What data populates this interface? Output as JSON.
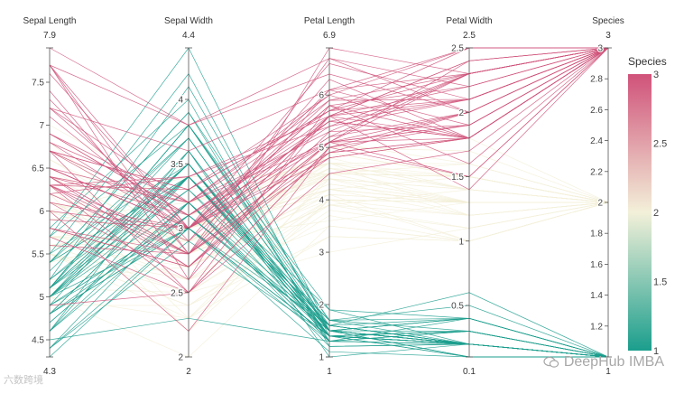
{
  "chart_data": {
    "type": "parallel-coordinates",
    "dimensions": [
      {
        "label": "Sepal Length",
        "range": [
          4.3,
          7.9
        ],
        "ticks": [
          4.5,
          5,
          5.5,
          6,
          6.5,
          7,
          7.5
        ],
        "range_labels": [
          "7.9",
          "4.3"
        ]
      },
      {
        "label": "Sepal Width",
        "range": [
          2,
          4.4
        ],
        "ticks": [
          2,
          2.5,
          3,
          3.5,
          4
        ],
        "range_labels": [
          "4.4",
          "2"
        ]
      },
      {
        "label": "Petal Length",
        "range": [
          1,
          6.9
        ],
        "ticks": [
          1,
          2,
          3,
          4,
          5,
          6
        ],
        "range_labels": [
          "6.9",
          "1"
        ]
      },
      {
        "label": "Petal Width",
        "range": [
          0.1,
          2.5
        ],
        "ticks": [
          0.5,
          1,
          1.5,
          2,
          2.5
        ],
        "range_labels": [
          "2.5",
          "0.1"
        ]
      },
      {
        "label": "Species",
        "range": [
          1,
          3
        ],
        "ticks": [
          1.2,
          1.4,
          1.6,
          1.8,
          2,
          2.2,
          2.4,
          2.6,
          2.8,
          3
        ],
        "range_labels": [
          "3",
          "1"
        ]
      }
    ],
    "records": [
      [
        5.1,
        3.5,
        1.4,
        0.2,
        1
      ],
      [
        4.9,
        3.0,
        1.4,
        0.2,
        1
      ],
      [
        4.7,
        3.2,
        1.3,
        0.2,
        1
      ],
      [
        4.6,
        3.1,
        1.5,
        0.2,
        1
      ],
      [
        5.0,
        3.6,
        1.4,
        0.2,
        1
      ],
      [
        5.4,
        3.9,
        1.7,
        0.4,
        1
      ],
      [
        4.6,
        3.4,
        1.4,
        0.3,
        1
      ],
      [
        5.0,
        3.4,
        1.5,
        0.2,
        1
      ],
      [
        4.4,
        2.9,
        1.4,
        0.2,
        1
      ],
      [
        4.9,
        3.1,
        1.5,
        0.1,
        1
      ],
      [
        5.4,
        3.7,
        1.5,
        0.2,
        1
      ],
      [
        4.8,
        3.4,
        1.6,
        0.2,
        1
      ],
      [
        4.8,
        3.0,
        1.4,
        0.1,
        1
      ],
      [
        4.3,
        3.0,
        1.1,
        0.1,
        1
      ],
      [
        5.8,
        4.0,
        1.2,
        0.2,
        1
      ],
      [
        5.7,
        4.4,
        1.5,
        0.4,
        1
      ],
      [
        5.4,
        3.9,
        1.3,
        0.4,
        1
      ],
      [
        5.1,
        3.5,
        1.4,
        0.3,
        1
      ],
      [
        5.7,
        3.8,
        1.7,
        0.3,
        1
      ],
      [
        5.1,
        3.8,
        1.5,
        0.3,
        1
      ],
      [
        5.4,
        3.4,
        1.7,
        0.2,
        1
      ],
      [
        5.1,
        3.7,
        1.5,
        0.4,
        1
      ],
      [
        4.6,
        3.6,
        1.0,
        0.2,
        1
      ],
      [
        5.1,
        3.3,
        1.7,
        0.5,
        1
      ],
      [
        4.8,
        3.4,
        1.9,
        0.2,
        1
      ],
      [
        5.0,
        3.0,
        1.6,
        0.2,
        1
      ],
      [
        5.0,
        3.4,
        1.6,
        0.4,
        1
      ],
      [
        5.2,
        3.5,
        1.5,
        0.2,
        1
      ],
      [
        5.2,
        3.4,
        1.4,
        0.2,
        1
      ],
      [
        4.7,
        3.2,
        1.6,
        0.2,
        1
      ],
      [
        4.8,
        3.1,
        1.6,
        0.2,
        1
      ],
      [
        5.4,
        3.4,
        1.5,
        0.4,
        1
      ],
      [
        5.2,
        4.1,
        1.5,
        0.1,
        1
      ],
      [
        5.5,
        4.2,
        1.4,
        0.2,
        1
      ],
      [
        4.9,
        3.1,
        1.5,
        0.2,
        1
      ],
      [
        5.0,
        3.2,
        1.2,
        0.2,
        1
      ],
      [
        5.5,
        3.5,
        1.3,
        0.2,
        1
      ],
      [
        4.9,
        3.6,
        1.4,
        0.1,
        1
      ],
      [
        4.4,
        3.0,
        1.3,
        0.2,
        1
      ],
      [
        5.1,
        3.4,
        1.5,
        0.2,
        1
      ],
      [
        5.0,
        3.5,
        1.3,
        0.3,
        1
      ],
      [
        4.5,
        2.3,
        1.3,
        0.3,
        1
      ],
      [
        4.4,
        3.2,
        1.3,
        0.2,
        1
      ],
      [
        5.0,
        3.5,
        1.6,
        0.6,
        1
      ],
      [
        5.1,
        3.8,
        1.9,
        0.4,
        1
      ],
      [
        4.8,
        3.0,
        1.4,
        0.3,
        1
      ],
      [
        5.1,
        3.8,
        1.6,
        0.2,
        1
      ],
      [
        4.6,
        3.2,
        1.4,
        0.2,
        1
      ],
      [
        5.3,
        3.7,
        1.5,
        0.2,
        1
      ],
      [
        5.0,
        3.3,
        1.4,
        0.2,
        1
      ],
      [
        7.0,
        3.2,
        4.7,
        1.4,
        2
      ],
      [
        6.4,
        3.2,
        4.5,
        1.5,
        2
      ],
      [
        6.9,
        3.1,
        4.9,
        1.5,
        2
      ],
      [
        5.5,
        2.3,
        4.0,
        1.3,
        2
      ],
      [
        6.5,
        2.8,
        4.6,
        1.5,
        2
      ],
      [
        5.7,
        2.8,
        4.5,
        1.3,
        2
      ],
      [
        6.3,
        3.3,
        4.7,
        1.6,
        2
      ],
      [
        4.9,
        2.4,
        3.3,
        1.0,
        2
      ],
      [
        6.6,
        2.9,
        4.6,
        1.3,
        2
      ],
      [
        5.2,
        2.7,
        3.9,
        1.4,
        2
      ],
      [
        5.0,
        2.0,
        3.5,
        1.0,
        2
      ],
      [
        5.9,
        3.0,
        4.2,
        1.5,
        2
      ],
      [
        6.0,
        2.2,
        4.0,
        1.0,
        2
      ],
      [
        6.1,
        2.9,
        4.7,
        1.4,
        2
      ],
      [
        5.6,
        2.9,
        3.6,
        1.3,
        2
      ],
      [
        6.7,
        3.1,
        4.4,
        1.4,
        2
      ],
      [
        5.6,
        3.0,
        4.5,
        1.5,
        2
      ],
      [
        5.8,
        2.7,
        4.1,
        1.0,
        2
      ],
      [
        6.2,
        2.2,
        4.5,
        1.5,
        2
      ],
      [
        5.6,
        2.5,
        3.9,
        1.1,
        2
      ],
      [
        5.9,
        3.2,
        4.8,
        1.8,
        2
      ],
      [
        6.1,
        2.8,
        4.0,
        1.3,
        2
      ],
      [
        6.3,
        2.5,
        4.9,
        1.5,
        2
      ],
      [
        6.1,
        2.8,
        4.7,
        1.2,
        2
      ],
      [
        6.4,
        2.9,
        4.3,
        1.3,
        2
      ],
      [
        6.6,
        3.0,
        4.4,
        1.4,
        2
      ],
      [
        6.8,
        2.8,
        4.8,
        1.4,
        2
      ],
      [
        6.7,
        3.0,
        5.0,
        1.7,
        2
      ],
      [
        6.0,
        2.9,
        4.5,
        1.5,
        2
      ],
      [
        5.7,
        2.6,
        3.5,
        1.0,
        2
      ],
      [
        5.5,
        2.4,
        3.8,
        1.1,
        2
      ],
      [
        5.5,
        2.4,
        3.7,
        1.0,
        2
      ],
      [
        5.8,
        2.7,
        3.9,
        1.2,
        2
      ],
      [
        6.0,
        2.7,
        5.1,
        1.6,
        2
      ],
      [
        5.4,
        3.0,
        4.5,
        1.5,
        2
      ],
      [
        6.0,
        3.4,
        4.5,
        1.6,
        2
      ],
      [
        6.7,
        3.1,
        4.7,
        1.5,
        2
      ],
      [
        6.3,
        2.3,
        4.4,
        1.3,
        2
      ],
      [
        5.6,
        3.0,
        4.1,
        1.3,
        2
      ],
      [
        5.5,
        2.5,
        4.0,
        1.3,
        2
      ],
      [
        5.5,
        2.6,
        4.4,
        1.2,
        2
      ],
      [
        6.1,
        3.0,
        4.6,
        1.4,
        2
      ],
      [
        5.8,
        2.6,
        4.0,
        1.2,
        2
      ],
      [
        5.0,
        2.3,
        3.3,
        1.0,
        2
      ],
      [
        5.6,
        2.7,
        4.2,
        1.3,
        2
      ],
      [
        5.7,
        3.0,
        4.2,
        1.2,
        2
      ],
      [
        5.7,
        2.9,
        4.2,
        1.3,
        2
      ],
      [
        6.2,
        2.9,
        4.3,
        1.3,
        2
      ],
      [
        5.1,
        2.5,
        3.0,
        1.1,
        2
      ],
      [
        5.7,
        2.8,
        4.1,
        1.3,
        2
      ],
      [
        6.3,
        3.3,
        6.0,
        2.5,
        3
      ],
      [
        5.8,
        2.7,
        5.1,
        1.9,
        3
      ],
      [
        7.1,
        3.0,
        5.9,
        2.1,
        3
      ],
      [
        6.3,
        2.9,
        5.6,
        1.8,
        3
      ],
      [
        6.5,
        3.0,
        5.8,
        2.2,
        3
      ],
      [
        7.6,
        3.0,
        6.6,
        2.1,
        3
      ],
      [
        4.9,
        2.5,
        4.5,
        1.7,
        3
      ],
      [
        7.3,
        2.9,
        6.3,
        1.8,
        3
      ],
      [
        6.7,
        2.5,
        5.8,
        1.8,
        3
      ],
      [
        7.2,
        3.6,
        6.1,
        2.5,
        3
      ],
      [
        6.5,
        3.2,
        5.1,
        2.0,
        3
      ],
      [
        6.4,
        2.7,
        5.3,
        1.9,
        3
      ],
      [
        6.8,
        3.0,
        5.5,
        2.1,
        3
      ],
      [
        5.7,
        2.5,
        5.0,
        2.0,
        3
      ],
      [
        5.8,
        2.8,
        5.1,
        2.4,
        3
      ],
      [
        6.4,
        3.2,
        5.3,
        2.3,
        3
      ],
      [
        6.5,
        3.0,
        5.5,
        1.8,
        3
      ],
      [
        7.7,
        3.8,
        6.7,
        2.2,
        3
      ],
      [
        7.7,
        2.6,
        6.9,
        2.3,
        3
      ],
      [
        6.0,
        2.2,
        5.0,
        1.5,
        3
      ],
      [
        6.9,
        3.2,
        5.7,
        2.3,
        3
      ],
      [
        5.6,
        2.8,
        4.9,
        2.0,
        3
      ],
      [
        7.7,
        2.8,
        6.7,
        2.0,
        3
      ],
      [
        6.3,
        2.7,
        4.9,
        1.8,
        3
      ],
      [
        6.7,
        3.3,
        5.7,
        2.1,
        3
      ],
      [
        7.2,
        3.2,
        6.0,
        1.8,
        3
      ],
      [
        6.2,
        2.8,
        4.8,
        1.8,
        3
      ],
      [
        6.1,
        3.0,
        4.9,
        1.8,
        3
      ],
      [
        6.4,
        2.8,
        5.6,
        2.1,
        3
      ],
      [
        7.2,
        3.0,
        5.8,
        1.6,
        3
      ],
      [
        7.4,
        2.8,
        6.1,
        1.9,
        3
      ],
      [
        7.9,
        3.8,
        6.4,
        2.0,
        3
      ],
      [
        6.4,
        2.8,
        5.6,
        2.2,
        3
      ],
      [
        6.3,
        2.8,
        5.1,
        1.5,
        3
      ],
      [
        6.1,
        2.6,
        5.6,
        1.4,
        3
      ],
      [
        7.7,
        3.0,
        6.1,
        2.3,
        3
      ],
      [
        6.3,
        3.4,
        5.6,
        2.4,
        3
      ],
      [
        6.4,
        3.1,
        5.5,
        1.8,
        3
      ],
      [
        6.0,
        3.0,
        4.8,
        1.8,
        3
      ],
      [
        6.9,
        3.1,
        5.4,
        2.1,
        3
      ],
      [
        6.7,
        3.1,
        5.6,
        2.4,
        3
      ],
      [
        6.9,
        3.1,
        5.1,
        2.3,
        3
      ],
      [
        5.8,
        2.7,
        5.1,
        1.9,
        3
      ],
      [
        6.8,
        3.2,
        5.9,
        2.3,
        3
      ],
      [
        6.7,
        3.3,
        5.7,
        2.5,
        3
      ],
      [
        6.7,
        3.0,
        5.2,
        2.3,
        3
      ],
      [
        6.3,
        2.5,
        5.0,
        1.9,
        3
      ],
      [
        6.5,
        3.0,
        5.2,
        2.0,
        3
      ],
      [
        6.2,
        3.4,
        5.4,
        2.3,
        3
      ],
      [
        5.9,
        3.0,
        5.1,
        1.8,
        3
      ]
    ],
    "color_scale": {
      "title": "Species",
      "range": [
        1,
        3
      ],
      "ticks": [
        "1",
        "1.5",
        "2",
        "2.5",
        "3"
      ],
      "tick_values": [
        1,
        1.5,
        2,
        2.5,
        3
      ],
      "stops": [
        "#1b9e8d",
        "#f3f0d9",
        "#d0527a"
      ]
    }
  },
  "watermark": {
    "right_text": "DeepHub IMBA",
    "right_icon": "wechat-icon",
    "left_text": "六数跨境"
  }
}
